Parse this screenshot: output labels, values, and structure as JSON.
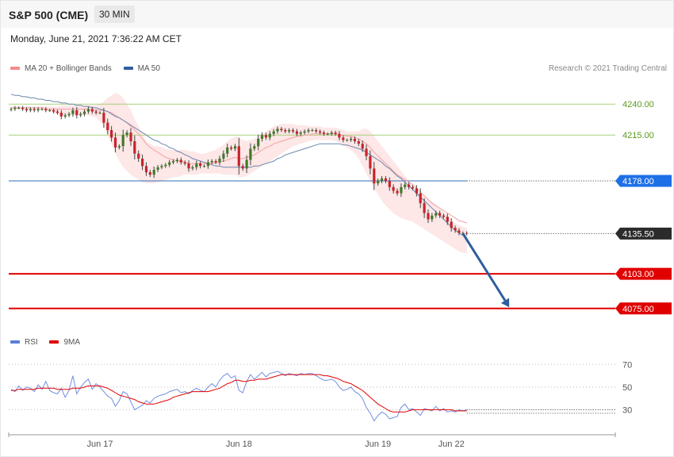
{
  "header": {
    "title": "S&P 500 (CME)",
    "timeframe": "30 MIN",
    "datetime": "Monday, June 21, 2021 7:36:22 AM CET"
  },
  "legend_main": [
    {
      "label": "MA 20 + Bollinger Bands",
      "color": "#f28b8b"
    },
    {
      "label": "MA 50",
      "color": "#2f5f9e"
    }
  ],
  "legend_rsi": [
    {
      "label": "RSI",
      "color": "#5b7fd6"
    },
    {
      "label": "9MA",
      "color": "#e00000"
    }
  ],
  "credit": "Research © 2021 Trading Central",
  "chart_data": [
    {
      "type": "candlestick",
      "ylim": [
        4055,
        4260
      ],
      "x_labels": [
        {
          "label": "Jun 17",
          "index": 23
        },
        {
          "label": "Jun 18",
          "index": 59
        },
        {
          "label": "Jun 19",
          "index": 95
        },
        {
          "label": "Jun 22",
          "index": 114
        }
      ],
      "levels": [
        {
          "value": 4240.0,
          "label": "4240.00",
          "kind": "resistance",
          "color": "#a8cf7a",
          "text_color": "#5a9a1a"
        },
        {
          "value": 4215.0,
          "label": "4215.00",
          "kind": "resistance",
          "color": "#a8cf7a",
          "text_color": "#5a9a1a"
        },
        {
          "value": 4178.0,
          "label": "4178.00",
          "kind": "pivot",
          "color": "#2f6fb0",
          "text_color": "#ffffff",
          "badge": "#1e6fe6"
        },
        {
          "value": 4135.5,
          "label": "4135.50",
          "kind": "last",
          "color": "#333333",
          "text_color": "#ffffff",
          "badge": "#2b2b2b"
        },
        {
          "value": 4103.0,
          "label": "4103.00",
          "kind": "support",
          "color": "#e00000",
          "text_color": "#ffffff",
          "badge": "#e00000"
        },
        {
          "value": 4075.0,
          "label": "4075.00",
          "kind": "support",
          "color": "#e00000",
          "text_color": "#ffffff",
          "badge": "#e00000"
        }
      ],
      "forecast_arrow": {
        "from": {
          "index": 117,
          "value": 4135.5
        },
        "to": {
          "index": 129,
          "value": 4076
        },
        "color": "#2e5e9e"
      },
      "close": [
        4236,
        4237,
        4237,
        4236,
        4235,
        4236,
        4235,
        4236,
        4236,
        4235,
        4235,
        4234,
        4233,
        4230,
        4231,
        4232,
        4235,
        4231,
        4232,
        4234,
        4236,
        4234,
        4233,
        4233,
        4225,
        4219,
        4213,
        4205,
        4206,
        4215,
        4217,
        4210,
        4200,
        4196,
        4190,
        4185,
        4183,
        4187,
        4189,
        4190,
        4191,
        4193,
        4194,
        4195,
        4193,
        4192,
        4188,
        4189,
        4192,
        4190,
        4190,
        4193,
        4194,
        4193,
        4196,
        4200,
        4205,
        4204,
        4206,
        4190,
        4188,
        4195,
        4204,
        4206,
        4212,
        4215,
        4213,
        4216,
        4218,
        4220,
        4219,
        4218,
        4219,
        4218,
        4216,
        4217,
        4218,
        4219,
        4219,
        4218,
        4217,
        4216,
        4216,
        4217,
        4216,
        4213,
        4211,
        4211,
        4212,
        4210,
        4208,
        4204,
        4198,
        4188,
        4176,
        4178,
        4180,
        4178,
        4173,
        4170,
        4168,
        4173,
        4175,
        4173,
        4172,
        4168,
        4160,
        4152,
        4147,
        4150,
        4152,
        4150,
        4149,
        4145,
        4140,
        4138,
        4136,
        4136,
        4135.5
      ],
      "ma20_upper": [
        4238,
        4238,
        4238,
        4238,
        4238,
        4238,
        4238,
        4238,
        4238,
        4238,
        4238,
        4238,
        4238,
        4239,
        4239,
        4239,
        4239,
        4239,
        4239,
        4239,
        4239,
        4239,
        4239,
        4240,
        4242,
        4245,
        4247,
        4249,
        4248,
        4245,
        4240,
        4235,
        4228,
        4222,
        4216,
        4210,
        4208,
        4206,
        4206,
        4205,
        4204,
        4203,
        4203,
        4203,
        4203,
        4203,
        4202,
        4202,
        4201,
        4200,
        4200,
        4201,
        4202,
        4203,
        4205,
        4207,
        4210,
        4212,
        4214,
        4213,
        4211,
        4210,
        4211,
        4212,
        4214,
        4216,
        4218,
        4220,
        4222,
        4223,
        4224,
        4224,
        4224,
        4224,
        4223,
        4223,
        4223,
        4222,
        4222,
        4222,
        4222,
        4221,
        4221,
        4221,
        4221,
        4220,
        4219,
        4218,
        4218,
        4218,
        4218,
        4220,
        4220,
        4218,
        4214,
        4210,
        4206,
        4202,
        4198,
        4194,
        4190,
        4186,
        4182,
        4178,
        4174,
        4170,
        4168,
        4166,
        4163,
        4161,
        4159,
        4156,
        4153,
        4150,
        4147,
        4144,
        4142,
        4141,
        4140
      ],
      "ma20_mid": [
        4237,
        4237,
        4237,
        4237,
        4237,
        4237,
        4237,
        4237,
        4237,
        4236,
        4236,
        4236,
        4236,
        4236,
        4236,
        4236,
        4236,
        4236,
        4236,
        4236,
        4236,
        4235,
        4235,
        4235,
        4235,
        4234,
        4233,
        4231,
        4229,
        4227,
        4225,
        4222,
        4219,
        4216,
        4212,
        4208,
        4205,
        4203,
        4201,
        4199,
        4197,
        4196,
        4195,
        4194,
        4194,
        4193,
        4192,
        4192,
        4192,
        4192,
        4192,
        4192,
        4192,
        4193,
        4193,
        4194,
        4195,
        4196,
        4197,
        4196,
        4196,
        4197,
        4198,
        4199,
        4201,
        4203,
        4205,
        4206,
        4208,
        4209,
        4210,
        4211,
        4212,
        4213,
        4214,
        4214,
        4215,
        4215,
        4216,
        4216,
        4216,
        4216,
        4216,
        4216,
        4216,
        4215,
        4215,
        4214,
        4214,
        4213,
        4212,
        4210,
        4208,
        4205,
        4201,
        4198,
        4195,
        4192,
        4189,
        4186,
        4183,
        4181,
        4179,
        4177,
        4175,
        4172,
        4169,
        4166,
        4163,
        4160,
        4158,
        4156,
        4154,
        4152,
        4150,
        4148,
        4146,
        4145,
        4144
      ],
      "ma20_lower": [
        4236,
        4236,
        4236,
        4236,
        4236,
        4236,
        4236,
        4236,
        4236,
        4235,
        4234,
        4233,
        4232,
        4231,
        4231,
        4231,
        4231,
        4231,
        4231,
        4231,
        4231,
        4230,
        4229,
        4226,
        4222,
        4215,
        4208,
        4200,
        4194,
        4189,
        4186,
        4183,
        4181,
        4179,
        4177,
        4176,
        4176,
        4176,
        4177,
        4178,
        4179,
        4180,
        4181,
        4181,
        4182,
        4183,
        4183,
        4183,
        4183,
        4184,
        4184,
        4184,
        4184,
        4184,
        4184,
        4183,
        4183,
        4183,
        4183,
        4181,
        4181,
        4182,
        4184,
        4186,
        4188,
        4190,
        4192,
        4194,
        4196,
        4198,
        4200,
        4202,
        4204,
        4206,
        4207,
        4208,
        4209,
        4210,
        4211,
        4211,
        4211,
        4211,
        4211,
        4211,
        4210,
        4209,
        4207,
        4205,
        4203,
        4200,
        4196,
        4190,
        4184,
        4178,
        4172,
        4167,
        4162,
        4158,
        4155,
        4152,
        4150,
        4148,
        4147,
        4146,
        4145,
        4143,
        4141,
        4139,
        4137,
        4135,
        4133,
        4131,
        4129,
        4127,
        4125,
        4123,
        4121,
        4120,
        4119
      ],
      "ma50": [
        4248,
        4247,
        4247,
        4246,
        4246,
        4245,
        4245,
        4244,
        4244,
        4243,
        4243,
        4242,
        4242,
        4241,
        4241,
        4240,
        4240,
        4239,
        4239,
        4238,
        4238,
        4237,
        4237,
        4236,
        4235,
        4234,
        4232,
        4230,
        4229,
        4227,
        4225,
        4223,
        4221,
        4219,
        4217,
        4215,
        4213,
        4211,
        4210,
        4208,
        4207,
        4205,
        4204,
        4202,
        4201,
        4199,
        4198,
        4196,
        4195,
        4194,
        4193,
        4192,
        4191,
        4190,
        4190,
        4189,
        4189,
        4189,
        4189,
        4189,
        4189,
        4189,
        4189,
        4190,
        4190,
        4191,
        4192,
        4193,
        4194,
        4196,
        4197,
        4199,
        4200,
        4201,
        4202,
        4203,
        4204,
        4205,
        4206,
        4207,
        4208,
        4208,
        4208,
        4208,
        4208,
        4208,
        4207,
        4207,
        4206,
        4205,
        4204,
        4203,
        4201,
        4199,
        4197,
        4195,
        4193,
        4190,
        4188,
        4185,
        4182,
        4180,
        4177,
        4174,
        4171,
        4168,
        4165,
        4162,
        4159,
        4156,
        4153,
        4150,
        4147,
        4144,
        4141,
        4138,
        4136,
        4134,
        4132
      ]
    },
    {
      "type": "line",
      "name": "RSI",
      "ylim": [
        10,
        80
      ],
      "reference_lines": [
        {
          "value": 70,
          "label": "70"
        },
        {
          "value": 50,
          "label": "50"
        },
        {
          "value": 30,
          "label": "30"
        }
      ],
      "rsi": [
        48,
        46,
        51,
        47,
        50,
        49,
        46,
        52,
        48,
        55,
        47,
        45,
        44,
        49,
        41,
        47,
        60,
        44,
        50,
        54,
        57,
        48,
        53,
        50,
        46,
        42,
        40,
        33,
        38,
        46,
        44,
        37,
        30,
        32,
        34,
        38,
        36,
        40,
        42,
        43,
        44,
        46,
        47,
        48,
        45,
        46,
        44,
        47,
        49,
        47,
        46,
        50,
        53,
        50,
        56,
        60,
        62,
        58,
        60,
        47,
        45,
        55,
        61,
        57,
        60,
        63,
        59,
        62,
        63,
        64,
        62,
        60,
        62,
        61,
        60,
        62,
        61,
        62,
        62,
        60,
        58,
        56,
        56,
        57,
        55,
        50,
        47,
        48,
        50,
        46,
        44,
        40,
        32,
        27,
        20,
        25,
        28,
        26,
        22,
        23,
        24,
        32,
        35,
        30,
        31,
        28,
        25,
        31,
        30,
        29,
        33,
        29,
        31,
        28,
        29,
        28,
        30,
        29,
        30
      ],
      "ma9": [
        47,
        47,
        48,
        48,
        48,
        48,
        48,
        49,
        49,
        49,
        49,
        49,
        48,
        48,
        48,
        48,
        49,
        49,
        49,
        50,
        51,
        51,
        51,
        51,
        50,
        49,
        47,
        45,
        43,
        42,
        41,
        40,
        39,
        37,
        36,
        35,
        35,
        35,
        36,
        37,
        38,
        39,
        41,
        42,
        43,
        44,
        45,
        46,
        46,
        46,
        46,
        46,
        47,
        48,
        49,
        51,
        53,
        54,
        56,
        56,
        55,
        55,
        56,
        56,
        57,
        57,
        57,
        58,
        59,
        60,
        61,
        61,
        61,
        61,
        61,
        61,
        61,
        61,
        61,
        61,
        61,
        60,
        60,
        59,
        58,
        57,
        55,
        54,
        53,
        51,
        49,
        47,
        44,
        41,
        38,
        35,
        33,
        31,
        29,
        28,
        28,
        28,
        28,
        29,
        30,
        30,
        30,
        30,
        30,
        30,
        30,
        30,
        30,
        30,
        30,
        29,
        29,
        29,
        29
      ],
      "x_labels": [
        {
          "label": "Jun 17",
          "index": 23
        },
        {
          "label": "Jun 18",
          "index": 59
        },
        {
          "label": "Jun 19",
          "index": 95
        },
        {
          "label": "Jun 22",
          "index": 114
        }
      ]
    }
  ]
}
